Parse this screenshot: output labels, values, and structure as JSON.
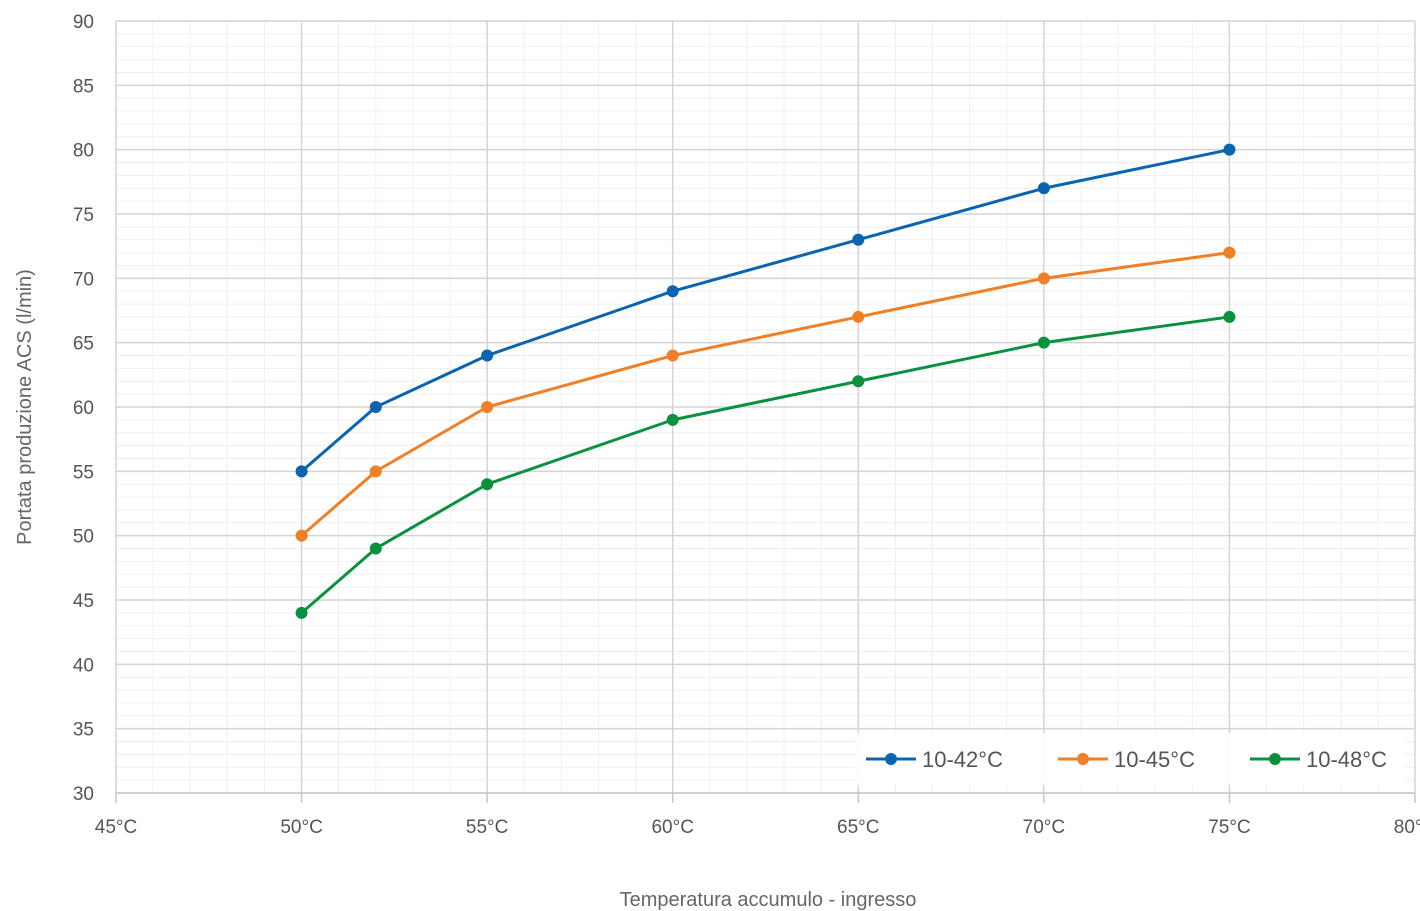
{
  "chart_data": {
    "type": "line",
    "xlabel": "Temperatura accumulo - ingresso",
    "ylabel": "Portata produzione ACS (l/min)",
    "xlim": [
      45,
      80
    ],
    "ylim": [
      30,
      90
    ],
    "x_unit_suffix": "°C",
    "x_ticks": [
      45,
      50,
      55,
      60,
      65,
      70,
      75,
      80
    ],
    "y_ticks": [
      30,
      35,
      40,
      45,
      50,
      55,
      60,
      65,
      70,
      75,
      80,
      85,
      90
    ],
    "grid": true,
    "legend_position": "bottom-right",
    "x": [
      50,
      52,
      55,
      60,
      65,
      70,
      75
    ],
    "series": [
      {
        "name": "10-42°C",
        "color": "#0a64b0",
        "values": [
          55,
          60,
          64,
          69,
          73,
          77,
          80
        ]
      },
      {
        "name": "10-45°C",
        "color": "#f07f26",
        "values": [
          50,
          55,
          60,
          64,
          67,
          70,
          72
        ]
      },
      {
        "name": "10-48°C",
        "color": "#0a9140",
        "values": [
          44,
          49,
          54,
          59,
          62,
          65,
          67
        ]
      }
    ]
  }
}
